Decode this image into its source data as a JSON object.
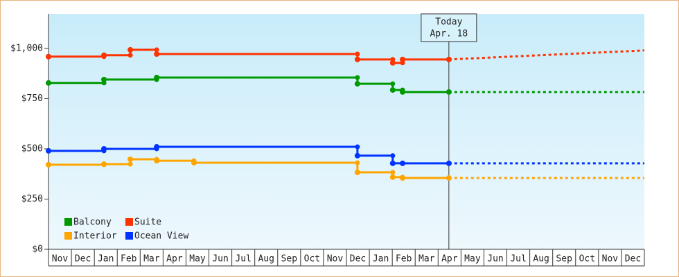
{
  "chart_data": {
    "type": "step",
    "xlim": [
      0,
      26
    ],
    "ylim": [
      0,
      1172
    ],
    "xticks": [
      {
        "value": 0,
        "label": "Nov"
      },
      {
        "value": 1,
        "label": "Dec"
      },
      {
        "value": 2,
        "label": "Jan"
      },
      {
        "value": 3,
        "label": "Feb"
      },
      {
        "value": 4,
        "label": "Mar"
      },
      {
        "value": 5,
        "label": "Apr"
      },
      {
        "value": 6,
        "label": "May"
      },
      {
        "value": 7,
        "label": "Jun"
      },
      {
        "value": 8,
        "label": "Jul"
      },
      {
        "value": 9,
        "label": "Aug"
      },
      {
        "value": 10,
        "label": "Sep"
      },
      {
        "value": 11,
        "label": "Oct"
      },
      {
        "value": 12,
        "label": "Nov"
      },
      {
        "value": 13,
        "label": "Dec"
      },
      {
        "value": 14,
        "label": "Jan"
      },
      {
        "value": 15,
        "label": "Feb"
      },
      {
        "value": 16,
        "label": "Mar"
      },
      {
        "value": 17,
        "label": "Apr"
      },
      {
        "value": 18,
        "label": "May"
      },
      {
        "value": 19,
        "label": "Jun"
      },
      {
        "value": 20,
        "label": "Jul"
      },
      {
        "value": 21,
        "label": "Aug"
      },
      {
        "value": 22,
        "label": "Sep"
      },
      {
        "value": 23,
        "label": "Oct"
      },
      {
        "value": 24,
        "label": "Nov"
      },
      {
        "value": 25,
        "label": "Dec"
      }
    ],
    "yticks": [
      {
        "value": 0,
        "label": "$0"
      },
      {
        "value": 250,
        "label": "$250"
      },
      {
        "value": 500,
        "label": "$500"
      },
      {
        "value": 750,
        "label": "$750"
      },
      {
        "value": 1000,
        "label": "$1,000"
      }
    ],
    "today": {
      "x": 17.47,
      "label": [
        "Today",
        "Apr. 18"
      ]
    },
    "series": [
      {
        "name": "Balcony",
        "color": "#009900",
        "x": [
          0,
          2.42,
          4.72,
          13.48,
          15.02,
          15.45,
          17.47
        ],
        "values": [
          828,
          845,
          855,
          824,
          793,
          783,
          783
        ],
        "forecast": {
          "x": [
            17.47,
            26
          ],
          "values": [
            783,
            783
          ]
        }
      },
      {
        "name": "Suite",
        "color": "#ff3300",
        "x": [
          0,
          2.42,
          3.57,
          4.72,
          13.48,
          15.02,
          15.45,
          17.47
        ],
        "values": [
          959,
          966,
          993,
          972,
          945,
          928,
          945,
          945
        ],
        "forecast": {
          "x": [
            17.47,
            26
          ],
          "values": [
            945,
            990
          ]
        }
      },
      {
        "name": "Interior",
        "color": "#ffa500",
        "x": [
          0,
          2.42,
          3.57,
          4.72,
          6.35,
          13.48,
          15.02,
          15.45,
          17.47
        ],
        "values": [
          421,
          424,
          448,
          441,
          431,
          383,
          359,
          355,
          355
        ],
        "forecast": {
          "x": [
            17.47,
            26
          ],
          "values": [
            355,
            355
          ]
        }
      },
      {
        "name": "Ocean View",
        "color": "#0033ff",
        "x": [
          0,
          2.42,
          4.72,
          13.48,
          15.02,
          15.45,
          17.47
        ],
        "values": [
          490,
          500,
          510,
          466,
          428,
          428,
          428
        ],
        "forecast": {
          "x": [
            17.47,
            26
          ],
          "values": [
            428,
            428
          ]
        }
      }
    ]
  }
}
